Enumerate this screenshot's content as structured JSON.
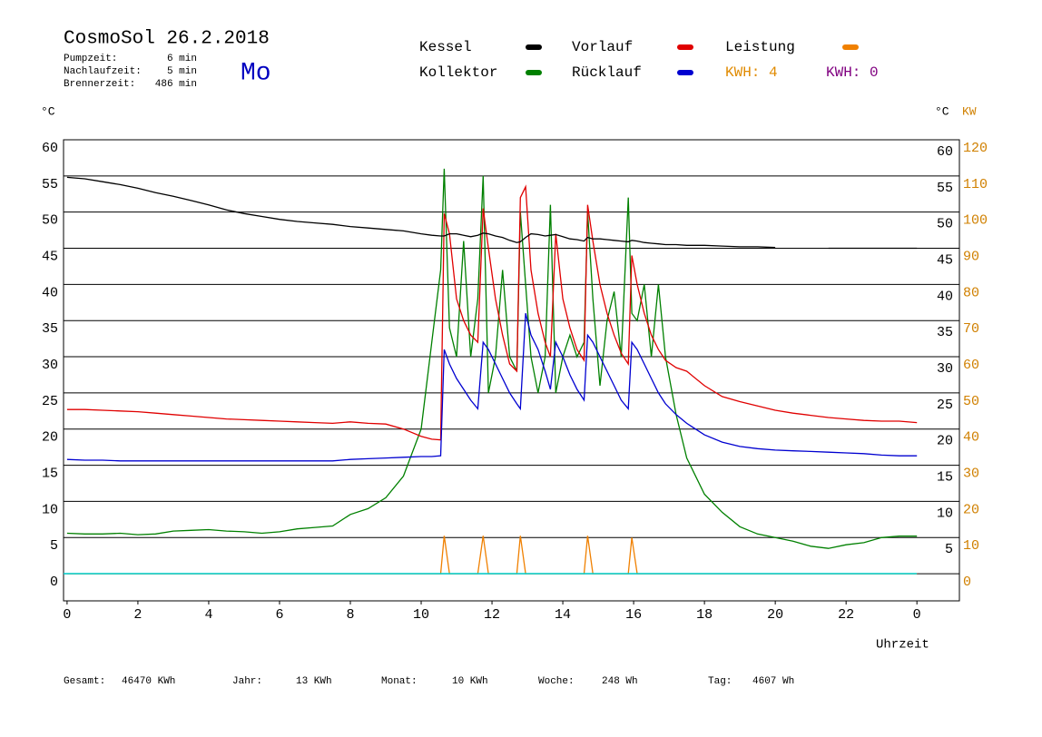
{
  "header": {
    "pump_label": "Pumpzeit:",
    "pump": "6 min",
    "nachlauf_label": "Nachlaufzeit:",
    "nachlauf": "5 min",
    "brenner_label": "Brennerzeit:",
    "brenner": "486 min",
    "day": "Mo"
  },
  "footer": [
    {
      "label": "Gesamt:",
      "value": "46470 KWh"
    },
    {
      "label": "Jahr:",
      "value": "13 KWh"
    },
    {
      "label": "Monat:",
      "value": "10 KWh"
    },
    {
      "label": "Woche:",
      "value": "248 Wh"
    },
    {
      "label": "Tag:",
      "value": "4607 Wh"
    }
  ],
  "kwh": [
    {
      "text": "KWH: 4",
      "color": "#e08a00"
    },
    {
      "text": "KWH: 0",
      "color": "#800080"
    }
  ],
  "chart_data": {
    "type": "line",
    "title": "CosmoSol 26.2.2018",
    "x_label": "Uhrzeit",
    "y_label": "°C",
    "y_right_label": "°C",
    "y2_label": "KW",
    "xlim": [
      -0.1,
      25.2
    ],
    "xticks": [
      0,
      2,
      4,
      6,
      8,
      10,
      12,
      14,
      16,
      18,
      20,
      22,
      {
        "value": 24,
        "label": "0"
      }
    ],
    "ylim": [
      -3.75,
      60
    ],
    "yticks": [
      0,
      5,
      10,
      15,
      20,
      25,
      30,
      35,
      40,
      45,
      50,
      55,
      60
    ],
    "y2lim": [
      -7.5,
      120
    ],
    "y2ticks": [
      0,
      10,
      20,
      30,
      40,
      50,
      60,
      70,
      80,
      90,
      100,
      110,
      120
    ],
    "grid": true,
    "x": [
      0,
      0.5,
      1,
      1.5,
      2,
      2.5,
      3,
      3.5,
      4,
      4.5,
      5,
      5.5,
      6,
      6.5,
      7,
      7.5,
      8,
      8.5,
      9,
      9.5,
      10,
      10.3,
      10.55,
      10.65,
      10.8,
      11,
      11.2,
      11.4,
      11.6,
      11.75,
      11.9,
      12.1,
      12.3,
      12.5,
      12.7,
      12.8,
      12.95,
      13.1,
      13.3,
      13.5,
      13.65,
      13.8,
      14,
      14.2,
      14.4,
      14.6,
      14.7,
      14.85,
      15.05,
      15.25,
      15.45,
      15.65,
      15.85,
      15.95,
      16.1,
      16.3,
      16.5,
      16.7,
      16.9,
      17.2,
      17.5,
      18,
      18.5,
      19,
      19.5,
      20,
      20.5,
      21,
      21.5,
      22,
      22.5,
      23,
      23.5,
      24
    ],
    "series": [
      {
        "name": "Kollektor",
        "color": "#008000",
        "values": [
          5.6,
          5.5,
          5.5,
          5.6,
          5.4,
          5.5,
          5.9,
          6.0,
          6.1,
          5.9,
          5.8,
          5.6,
          5.8,
          6.2,
          6.4,
          6.6,
          8.2,
          9.0,
          10.5,
          13.5,
          20,
          32,
          42,
          56,
          34,
          30,
          46,
          30,
          38,
          55,
          25,
          30,
          42,
          30,
          28,
          50,
          40,
          30,
          25,
          30,
          51,
          25,
          30,
          33,
          30,
          32,
          50,
          38,
          26,
          35,
          39,
          30,
          52,
          36,
          35,
          40,
          30,
          40,
          30,
          22,
          16,
          11,
          8.5,
          6.5,
          5.5,
          5.0,
          4.5,
          3.8,
          3.5,
          4.0,
          4.3,
          5.0,
          5.2,
          5.2
        ]
      },
      {
        "name": "Vorlauf",
        "color": "#e00000",
        "values": [
          22.7,
          22.7,
          22.6,
          22.5,
          22.4,
          22.2,
          22.0,
          21.8,
          21.6,
          21.4,
          21.3,
          21.2,
          21.1,
          21.0,
          20.9,
          20.8,
          21.0,
          20.8,
          20.7,
          20.0,
          19.0,
          18.6,
          18.5,
          49.8,
          47,
          38,
          35,
          33,
          32,
          50.5,
          45,
          38,
          33,
          29,
          28,
          52,
          53.5,
          42,
          36,
          32,
          30,
          47,
          38,
          34,
          31,
          29.5,
          51,
          46,
          40,
          36,
          33,
          30.5,
          29,
          44,
          40,
          36,
          33,
          31,
          29.5,
          28.5,
          28,
          26,
          24.5,
          23.8,
          23.2,
          22.6,
          22.2,
          21.9,
          21.6,
          21.4,
          21.2,
          21.1,
          21.1,
          20.9
        ]
      },
      {
        "name": "Rücklauf",
        "color": "#0000d0",
        "values": [
          15.8,
          15.7,
          15.7,
          15.6,
          15.6,
          15.6,
          15.6,
          15.6,
          15.6,
          15.6,
          15.6,
          15.6,
          15.6,
          15.6,
          15.6,
          15.6,
          15.8,
          15.9,
          16.0,
          16.1,
          16.2,
          16.2,
          16.3,
          31,
          29,
          27,
          25.5,
          24,
          22.8,
          32,
          31,
          29,
          27,
          25,
          23.5,
          22.8,
          36,
          33,
          31,
          28,
          25.5,
          32,
          30,
          27.5,
          25.5,
          24,
          33,
          32,
          30,
          28,
          26,
          24,
          22.8,
          32,
          31,
          29,
          27,
          25,
          23.5,
          22,
          20.8,
          19.2,
          18.2,
          17.6,
          17.3,
          17.1,
          17.0,
          16.9,
          16.8,
          16.7,
          16.6,
          16.4,
          16.3,
          16.3
        ]
      },
      {
        "name": "Kessel",
        "color": "#000000",
        "values": [
          54.8,
          54.6,
          54.2,
          53.8,
          53.3,
          52.7,
          52.2,
          51.6,
          51.0,
          50.3,
          49.8,
          49.4,
          49.0,
          48.7,
          48.5,
          48.3,
          48.0,
          47.8,
          47.6,
          47.4,
          47.0,
          46.8,
          46.7,
          46.7,
          47,
          47,
          46.8,
          46.6,
          46.8,
          47.1,
          47.0,
          46.7,
          46.5,
          46.1,
          45.8,
          45.9,
          46.5,
          47.0,
          46.9,
          46.7,
          46.8,
          46.9,
          46.6,
          46.3,
          46.2,
          46.0,
          46.5,
          46.3,
          46.3,
          46.2,
          46.1,
          46.0,
          45.9,
          46.1,
          46.0,
          45.8,
          45.7,
          45.6,
          45.5,
          45.5,
          45.4,
          45.4,
          45.3,
          45.2,
          45.2,
          45.1,
          null,
          null,
          45.0,
          45.0,
          45.0,
          45.0,
          45.0,
          45.0
        ]
      },
      {
        "name": "Leistung",
        "color": "#f08000",
        "axis": "y2",
        "values": [
          0,
          0,
          0,
          0,
          0,
          0,
          0,
          0,
          0,
          0,
          0,
          0,
          0,
          0,
          0,
          0,
          0,
          0,
          0,
          0,
          0,
          0,
          0,
          10.5,
          0,
          0,
          0,
          0,
          0,
          10.5,
          0,
          0,
          0,
          0,
          0,
          10.5,
          0,
          0,
          0,
          0,
          0,
          0,
          0,
          0,
          0,
          0,
          10.5,
          0,
          0,
          0,
          0,
          0,
          0,
          10,
          0,
          0,
          0,
          0,
          0,
          0,
          0,
          0,
          0,
          0,
          0,
          0,
          0,
          0,
          0,
          0,
          0,
          0,
          0,
          0
        ]
      }
    ]
  }
}
